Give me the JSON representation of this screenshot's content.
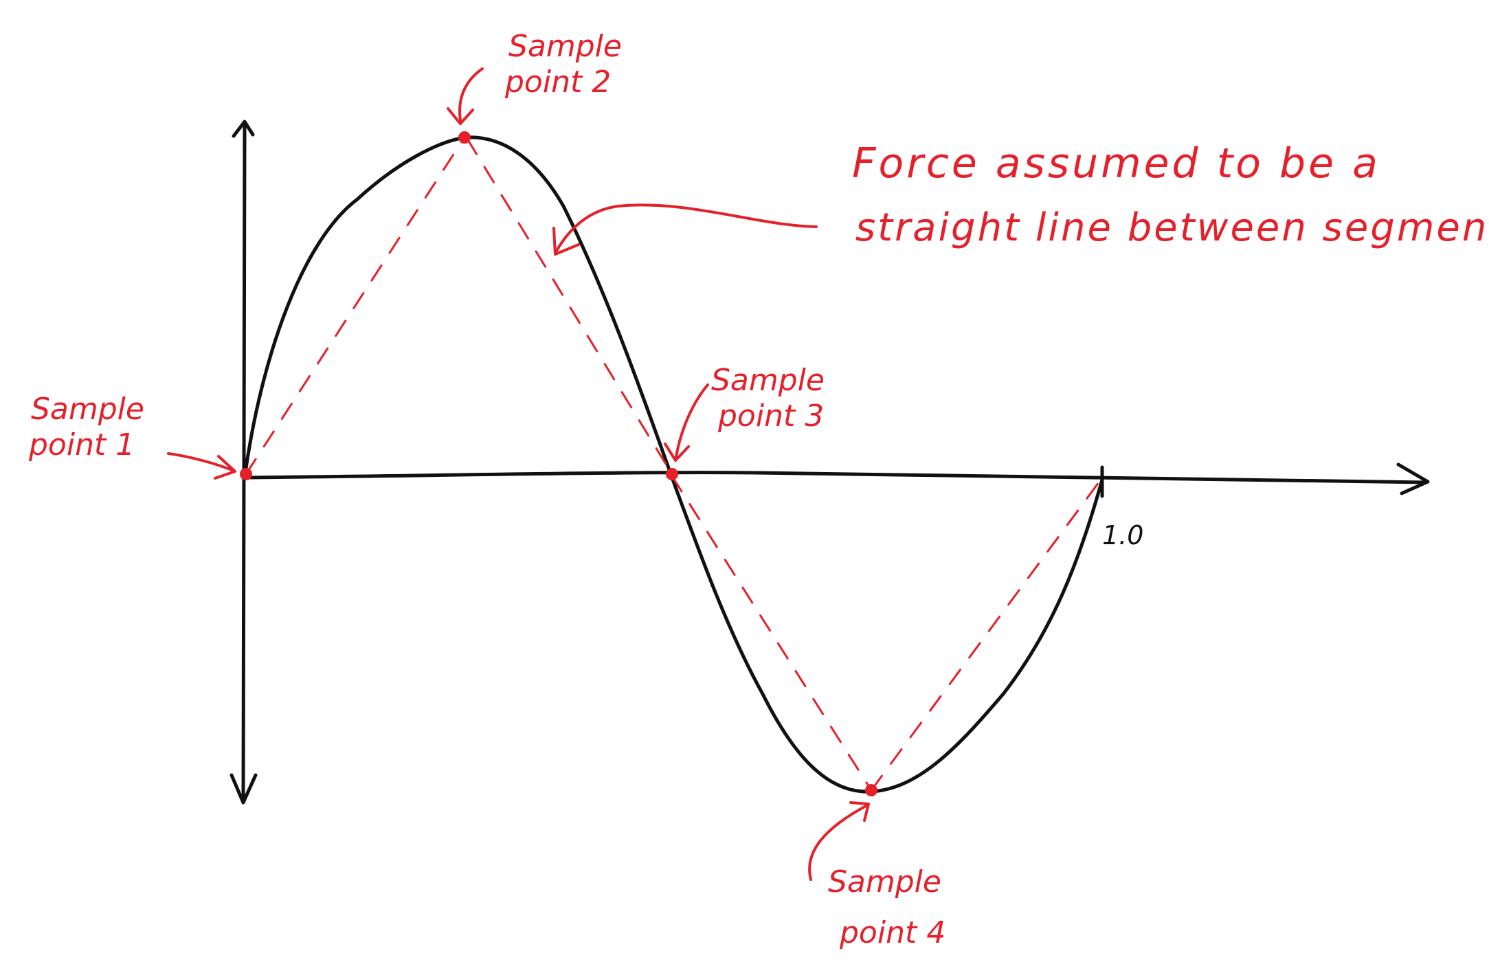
{
  "colors": {
    "curve": "#111111",
    "annotation": "#e5202a",
    "background": "#ffffff"
  },
  "axis": {
    "x_end_tick_label": "1.0"
  },
  "sample_points": [
    {
      "label_line1": "Sample",
      "label_line2": "point 1"
    },
    {
      "label_line1": "Sample",
      "label_line2": "point 2"
    },
    {
      "label_line1": "Sample",
      "label_line2": "point 3"
    },
    {
      "label_line1": "Sample",
      "label_line2": "point 4"
    }
  ],
  "note": {
    "line1": "Force assumed to be a",
    "line2": "straight line between segments"
  }
}
